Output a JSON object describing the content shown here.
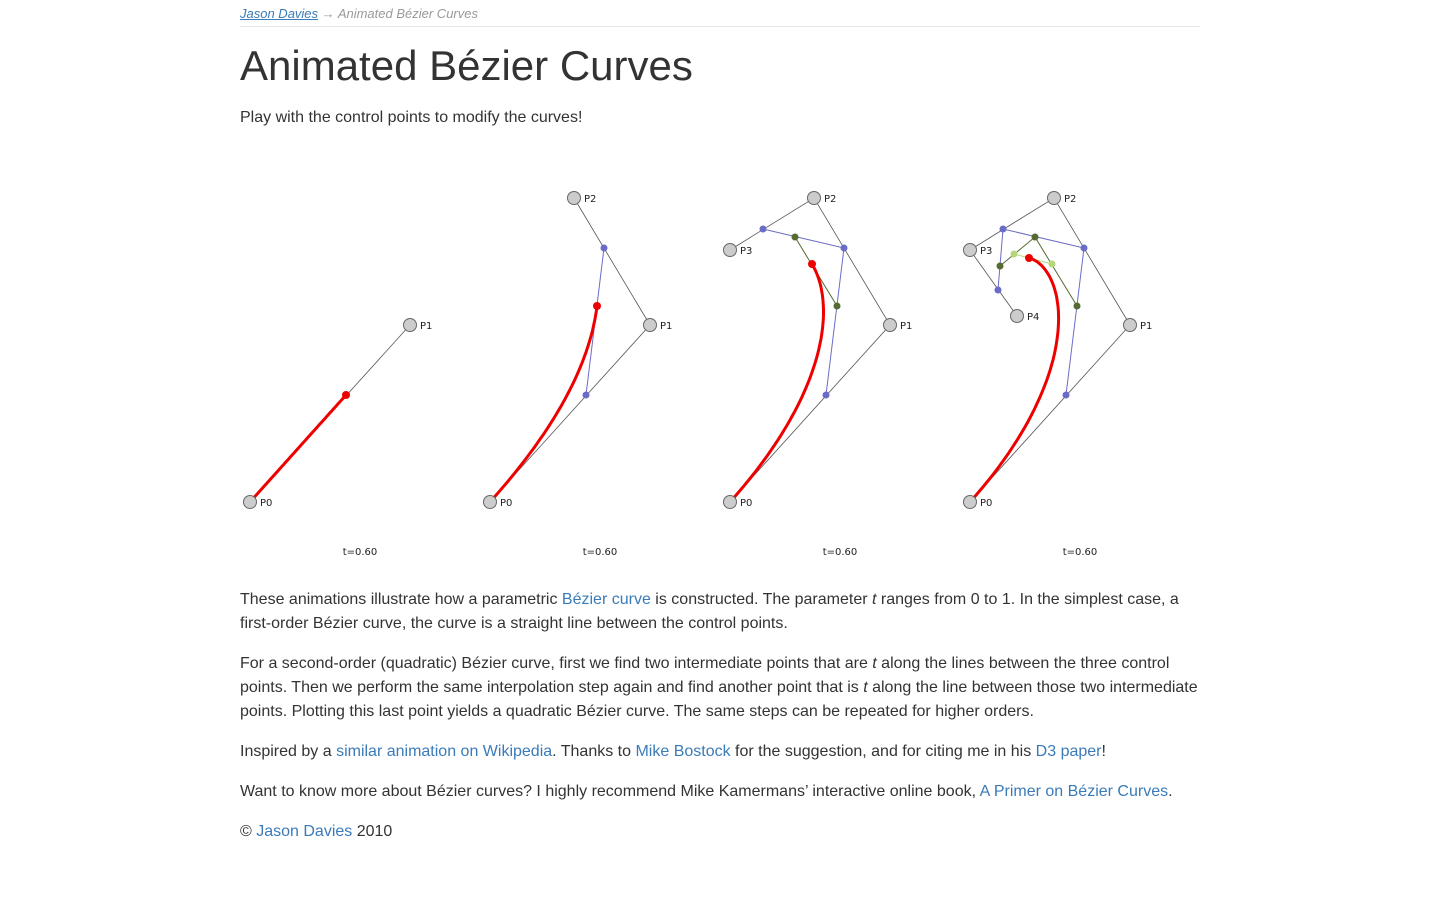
{
  "breadcrumb": {
    "home": "Jason Davies",
    "separator": "→",
    "current": "Animated Bézier Curves"
  },
  "title": "Animated Bézier Curves",
  "subtitle": "Play with the control points to modify the curves!",
  "figures": [
    {
      "points": [
        "P0",
        "P1"
      ],
      "caption": "t=0.60"
    },
    {
      "points": [
        "P0",
        "P1",
        "P2"
      ],
      "caption": "t=0.60"
    },
    {
      "points": [
        "P0",
        "P1",
        "P2",
        "P3"
      ],
      "caption": "t=0.60"
    },
    {
      "points": [
        "P0",
        "P1",
        "P2",
        "P3",
        "P4"
      ],
      "caption": "t=0.60"
    }
  ],
  "paragraphs": [
    [
      {
        "text": "These animations illustrate how a parametric "
      },
      {
        "link": "Bézier curve"
      },
      {
        "text": " is constructed. The parameter "
      },
      {
        "em": "t"
      },
      {
        "text": " ranges from 0 to 1. In the simplest case, a first-order Bézier curve, the curve is a straight line between the control points."
      }
    ],
    [
      {
        "text": "For a second-order (quadratic) Bézier curve, first we find two intermediate points that are "
      },
      {
        "em": "t"
      },
      {
        "text": " along the lines between the three control points. Then we perform the same interpolation step again and find another point that is "
      },
      {
        "em": "t"
      },
      {
        "text": " along the line between those two intermediate points. Plotting this last point yields a quadratic Bézier curve. The same steps can be repeated for higher orders."
      }
    ],
    [
      {
        "text": "Inspired by a "
      },
      {
        "link": "similar animation on Wikipedia"
      },
      {
        "text": ". Thanks to "
      },
      {
        "link": "Mike Bostock"
      },
      {
        "text": " for the suggestion, and for citing me in his "
      },
      {
        "link": "D3 paper"
      },
      {
        "text": "!"
      }
    ],
    [
      {
        "text": "Want to know more about Bézier curves? I highly recommend Mike Kamermans’ interactive online book, "
      },
      {
        "link": "A Primer on Bézier Curves"
      },
      {
        "text": "."
      }
    ],
    [
      {
        "text": "© "
      },
      {
        "link": "Jason Davies"
      },
      {
        "text": " 2010"
      }
    ]
  ]
}
